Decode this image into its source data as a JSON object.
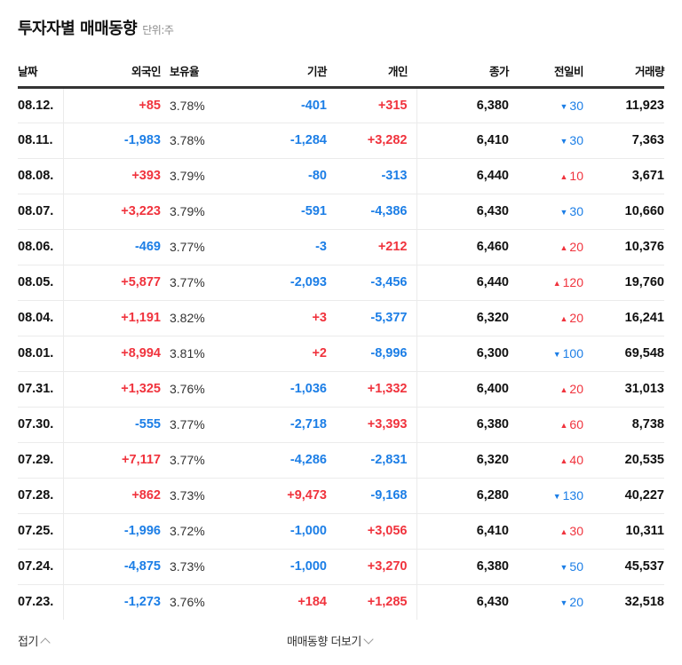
{
  "header": {
    "title": "투자자별 매매동향",
    "unit": "단위:주"
  },
  "table": {
    "columns": {
      "date": "날짜",
      "foreign": "외국인",
      "ratio": "보유율",
      "institution": "기관",
      "individual": "개인",
      "close": "종가",
      "change": "전일비",
      "volume": "거래량"
    },
    "rows": [
      {
        "date": "08.12.",
        "foreign": "+85",
        "ratio": "3.78%",
        "institution": "-401",
        "individual": "+315",
        "close": "6,380",
        "change": "30",
        "change_dir": "down",
        "volume": "11,923"
      },
      {
        "date": "08.11.",
        "foreign": "-1,983",
        "ratio": "3.78%",
        "institution": "-1,284",
        "individual": "+3,282",
        "close": "6,410",
        "change": "30",
        "change_dir": "down",
        "volume": "7,363"
      },
      {
        "date": "08.08.",
        "foreign": "+393",
        "ratio": "3.79%",
        "institution": "-80",
        "individual": "-313",
        "close": "6,440",
        "change": "10",
        "change_dir": "up",
        "volume": "3,671"
      },
      {
        "date": "08.07.",
        "foreign": "+3,223",
        "ratio": "3.79%",
        "institution": "-591",
        "individual": "-4,386",
        "close": "6,430",
        "change": "30",
        "change_dir": "down",
        "volume": "10,660"
      },
      {
        "date": "08.06.",
        "foreign": "-469",
        "ratio": "3.77%",
        "institution": "-3",
        "individual": "+212",
        "close": "6,460",
        "change": "20",
        "change_dir": "up",
        "volume": "10,376"
      },
      {
        "date": "08.05.",
        "foreign": "+5,877",
        "ratio": "3.77%",
        "institution": "-2,093",
        "individual": "-3,456",
        "close": "6,440",
        "change": "120",
        "change_dir": "up",
        "volume": "19,760"
      },
      {
        "date": "08.04.",
        "foreign": "+1,191",
        "ratio": "3.82%",
        "institution": "+3",
        "individual": "-5,377",
        "close": "6,320",
        "change": "20",
        "change_dir": "up",
        "volume": "16,241"
      },
      {
        "date": "08.01.",
        "foreign": "+8,994",
        "ratio": "3.81%",
        "institution": "+2",
        "individual": "-8,996",
        "close": "6,300",
        "change": "100",
        "change_dir": "down",
        "volume": "69,548"
      },
      {
        "date": "07.31.",
        "foreign": "+1,325",
        "ratio": "3.76%",
        "institution": "-1,036",
        "individual": "+1,332",
        "close": "6,400",
        "change": "20",
        "change_dir": "up",
        "volume": "31,013"
      },
      {
        "date": "07.30.",
        "foreign": "-555",
        "ratio": "3.77%",
        "institution": "-2,718",
        "individual": "+3,393",
        "close": "6,380",
        "change": "60",
        "change_dir": "up",
        "volume": "8,738"
      },
      {
        "date": "07.29.",
        "foreign": "+7,117",
        "ratio": "3.77%",
        "institution": "-4,286",
        "individual": "-2,831",
        "close": "6,320",
        "change": "40",
        "change_dir": "up",
        "volume": "20,535"
      },
      {
        "date": "07.28.",
        "foreign": "+862",
        "ratio": "3.73%",
        "institution": "+9,473",
        "individual": "-9,168",
        "close": "6,280",
        "change": "130",
        "change_dir": "down",
        "volume": "40,227"
      },
      {
        "date": "07.25.",
        "foreign": "-1,996",
        "ratio": "3.72%",
        "institution": "-1,000",
        "individual": "+3,056",
        "close": "6,410",
        "change": "30",
        "change_dir": "up",
        "volume": "10,311"
      },
      {
        "date": "07.24.",
        "foreign": "-4,875",
        "ratio": "3.73%",
        "institution": "-1,000",
        "individual": "+3,270",
        "close": "6,380",
        "change": "50",
        "change_dir": "down",
        "volume": "45,537"
      },
      {
        "date": "07.23.",
        "foreign": "-1,273",
        "ratio": "3.76%",
        "institution": "+184",
        "individual": "+1,285",
        "close": "6,430",
        "change": "20",
        "change_dir": "down",
        "volume": "32,518"
      }
    ]
  },
  "footer": {
    "fold_label": "접기",
    "more_label": "매매동향 더보기"
  },
  "colors": {
    "up": "#f0333d",
    "down": "#1c7ee6",
    "text": "#111111",
    "header_rule": "#333333",
    "row_rule": "#ebebeb"
  },
  "icons": {
    "up_arrow": "▲",
    "down_arrow": "▼"
  }
}
